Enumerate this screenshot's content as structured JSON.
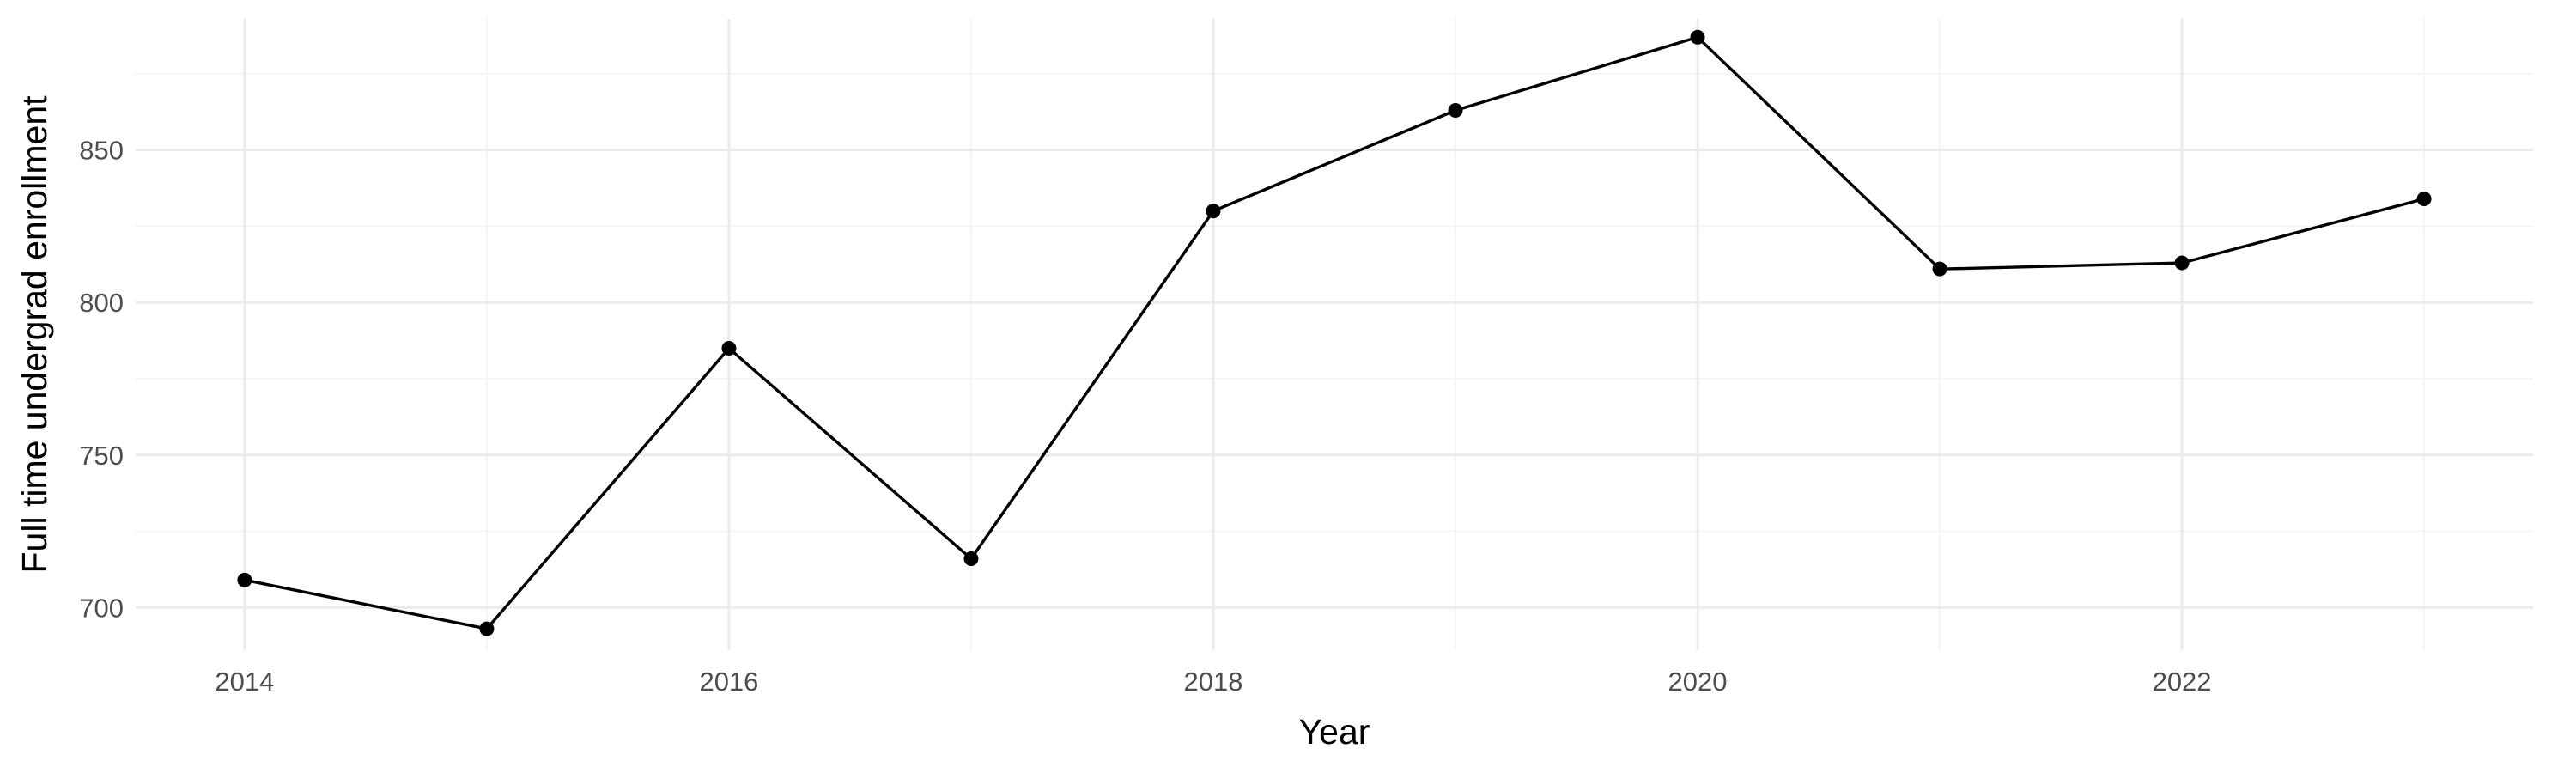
{
  "chart_data": {
    "type": "line",
    "title": "",
    "xlabel": "Year",
    "ylabel": "Full time undergrad enrollment",
    "x": [
      2014,
      2015,
      2016,
      2017,
      2018,
      2019,
      2020,
      2021,
      2022,
      2023
    ],
    "series": [
      {
        "values": [
          709,
          693,
          785,
          716,
          830,
          863,
          887,
          811,
          813,
          834
        ]
      }
    ],
    "xlim": [
      2013.55,
      2023.45
    ],
    "ylim": [
      686,
      893
    ],
    "x_ticks": [
      2014,
      2016,
      2018,
      2020,
      2022
    ],
    "x_tick_labels": [
      "2014",
      "2016",
      "2018",
      "2020",
      "2022"
    ],
    "y_ticks": [
      700,
      750,
      800,
      850
    ],
    "y_tick_labels": [
      "700",
      "750",
      "800",
      "850"
    ],
    "grid": true,
    "legend": "none",
    "colors": {
      "line": "#000000",
      "point": "#000000",
      "grid": "#ebebeb"
    }
  }
}
